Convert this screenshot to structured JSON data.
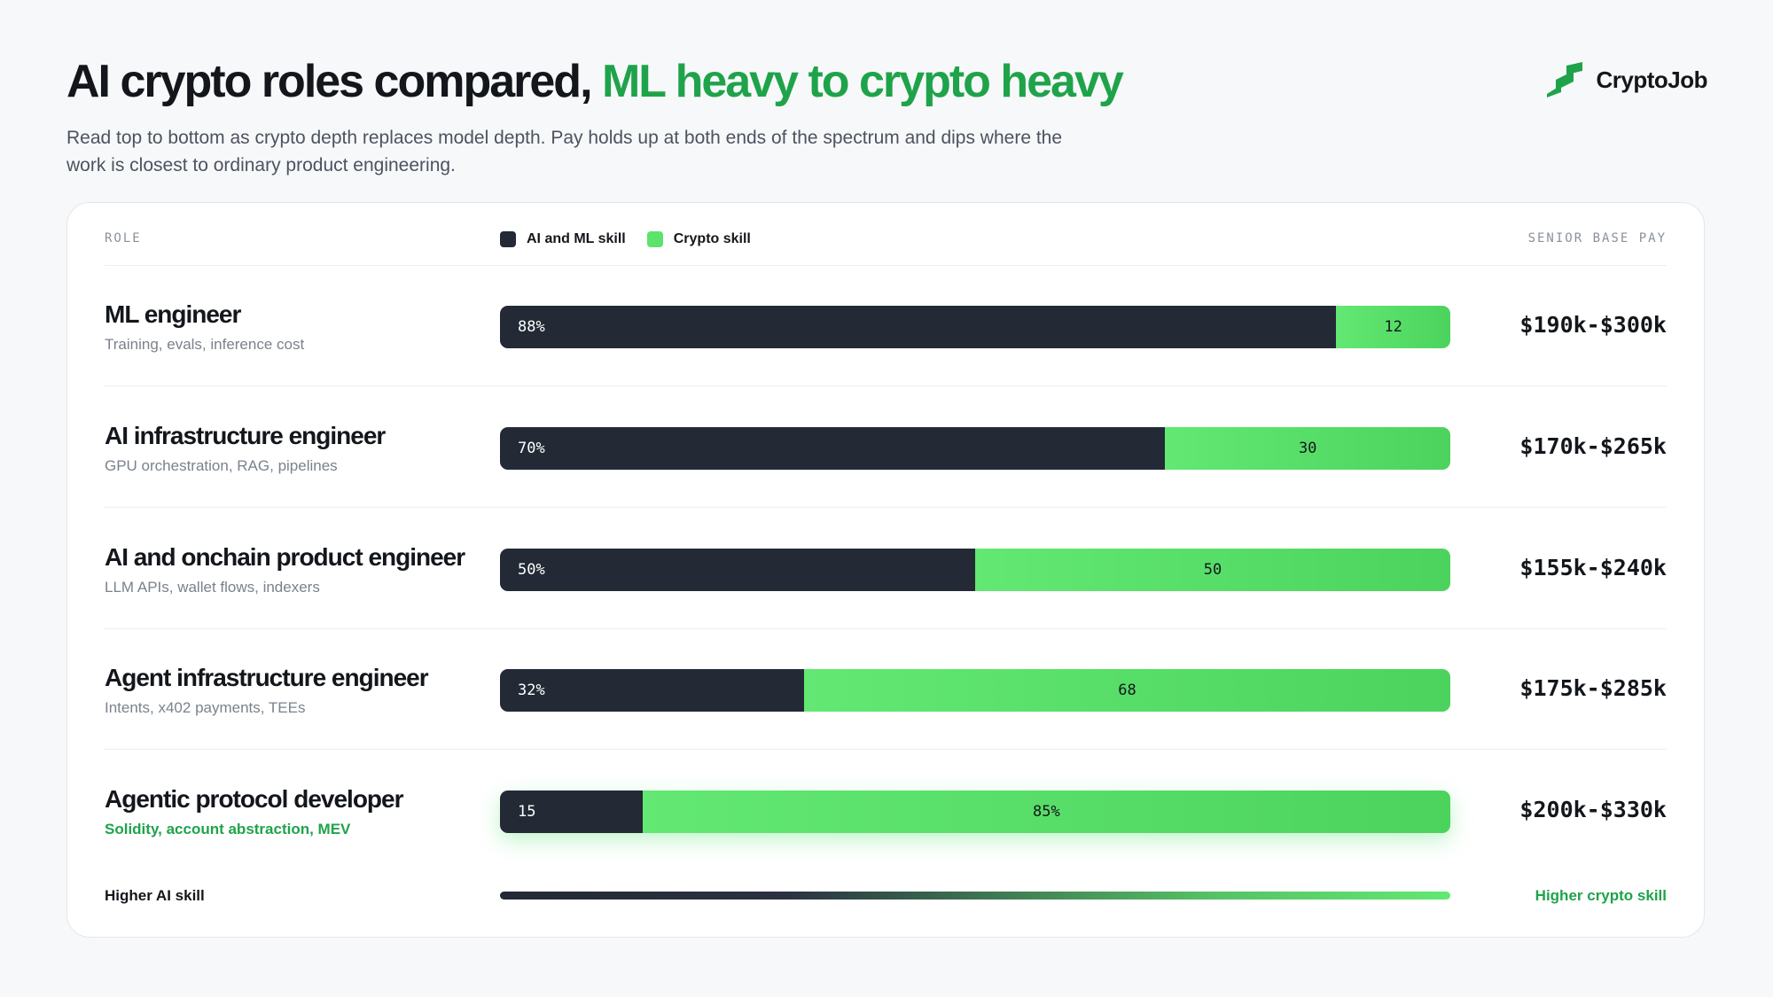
{
  "header": {
    "title_dark": "AI crypto roles compared,",
    "title_accent": "ML heavy to crypto heavy",
    "subtitle": "Read top to bottom as crypto depth replaces model depth. Pay holds up at both ends of the spectrum and dips where the work is closest to ordinary product engineering."
  },
  "brand": {
    "name": "CryptoJob",
    "icon": "cryptojob-logo-icon"
  },
  "table": {
    "col_role": "ROLE",
    "col_pay": "SENIOR BASE PAY",
    "axis_left": "Higher AI skill",
    "axis_right": "Higher crypto skill"
  },
  "colors": {
    "ai": "#232a36",
    "crypto": "#5ce36d",
    "accent": "#1fa34a"
  },
  "chart_data": {
    "type": "bar",
    "orientation": "horizontal",
    "stacked": true,
    "categories": [
      "ML engineer",
      "AI infrastructure engineer",
      "AI and onchain product engineer",
      "Agent infrastructure engineer",
      "Agentic protocol developer"
    ],
    "series": [
      {
        "name": "AI and ML skill",
        "values": [
          88,
          70,
          50,
          32,
          15
        ],
        "labels": [
          "88%",
          "70%",
          "50%",
          "32%",
          "15"
        ]
      },
      {
        "name": "Crypto skill",
        "values": [
          12,
          30,
          50,
          68,
          85
        ],
        "labels": [
          "12",
          "30",
          "50",
          "68",
          "85%"
        ]
      }
    ],
    "descriptions": [
      "Training, evals, inference cost",
      "GPU orchestration, RAG, pipelines",
      "LLM APIs, wallet flows, indexers",
      "Intents, x402 payments, TEEs",
      "Solidity, account abstraction, MEV"
    ],
    "pay": [
      "$190k-$300k",
      "$170k-$265k",
      "$155k-$240k",
      "$175k-$285k",
      "$200k-$330k"
    ],
    "xlim": [
      0,
      100
    ],
    "legend": "top"
  }
}
